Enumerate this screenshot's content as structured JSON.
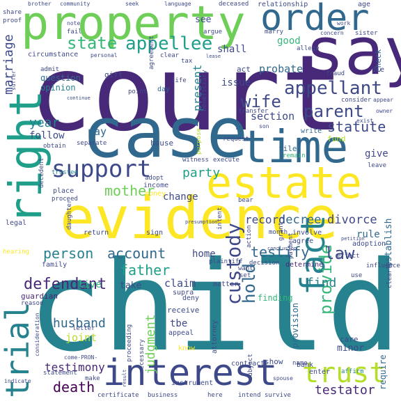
{
  "palette": {
    "yellow": "#fde725",
    "yellow_green": "#b5de2b",
    "light_green": "#6ece58",
    "green": "#35b779",
    "teal_green": "#1f9e89",
    "teal": "#26828e",
    "blue": "#31688e",
    "indigo": "#3e4989",
    "purple": "#482878",
    "dark_purple": "#440154"
  },
  "words": [
    {
      "text": "court",
      "color": "purple",
      "weight": 1.0
    },
    {
      "text": "child",
      "color": "teal",
      "weight": 0.98
    },
    {
      "text": "evidence",
      "color": "yellow",
      "weight": 0.8
    },
    {
      "text": "case",
      "color": "blue",
      "weight": 0.78
    },
    {
      "text": "property",
      "color": "light_green",
      "weight": 0.72
    },
    {
      "text": "say",
      "color": "purple",
      "weight": 0.62
    },
    {
      "text": "estate",
      "color": "yellow",
      "weight": 0.55
    },
    {
      "text": "time",
      "color": "blue",
      "weight": 0.52
    },
    {
      "text": "right",
      "color": "teal_green",
      "weight": 0.5
    },
    {
      "text": "interest",
      "color": "indigo",
      "weight": 0.46
    },
    {
      "text": "order",
      "color": "blue",
      "weight": 0.44
    },
    {
      "text": "trial",
      "color": "teal",
      "weight": 0.42
    },
    {
      "text": "fact",
      "color": "teal",
      "weight": 0.4
    },
    {
      "text": "support",
      "color": "indigo",
      "weight": 0.38
    },
    {
      "text": "trust",
      "color": "yellow_green",
      "weight": 0.34
    },
    {
      "text": "appellant",
      "color": "indigo",
      "weight": 0.3
    },
    {
      "text": "custody",
      "color": "indigo",
      "weight": 0.29
    },
    {
      "text": "provide",
      "color": "green",
      "weight": 0.28
    },
    {
      "text": "appellee",
      "color": "teal_green",
      "weight": 0.27
    },
    {
      "text": "parent",
      "color": "indigo",
      "weight": 0.27
    },
    {
      "text": "state",
      "color": "green",
      "weight": 0.26
    },
    {
      "text": "hold",
      "color": "blue",
      "weight": 0.25
    },
    {
      "text": "wife",
      "color": "indigo",
      "weight": 0.24
    },
    {
      "text": "law",
      "color": "indigo",
      "weight": 0.24
    },
    {
      "text": "mother",
      "color": "light_green",
      "weight": 0.23
    },
    {
      "text": "defendant",
      "color": "purple",
      "weight": 0.23
    },
    {
      "text": "death",
      "color": "dark_purple",
      "weight": 0.22
    },
    {
      "text": "person",
      "color": "teal",
      "weight": 0.22
    },
    {
      "text": "account",
      "color": "blue",
      "weight": 0.22
    },
    {
      "text": "testify",
      "color": "blue",
      "weight": 0.22
    },
    {
      "text": "statute",
      "color": "indigo",
      "weight": 0.22
    },
    {
      "text": "father",
      "color": "teal_green",
      "weight": 0.21
    },
    {
      "text": "year",
      "color": "teal",
      "weight": 0.2
    },
    {
      "text": "party",
      "color": "teal_green",
      "weight": 0.2
    },
    {
      "text": "judgment",
      "color": "light_green",
      "weight": 0.2
    },
    {
      "text": "husband",
      "color": "blue",
      "weight": 0.19
    },
    {
      "text": "testator",
      "color": "purple",
      "weight": 0.19
    },
    {
      "text": "find",
      "color": "teal",
      "weight": 0.18
    },
    {
      "text": "marriage",
      "color": "indigo",
      "weight": 0.18
    },
    {
      "text": "decree",
      "color": "blue",
      "weight": 0.18
    },
    {
      "text": "divorce",
      "color": "indigo",
      "weight": 0.18
    },
    {
      "text": "present",
      "color": "teal",
      "weight": 0.17
    },
    {
      "text": "record",
      "color": "indigo",
      "weight": 0.17
    },
    {
      "text": "testimony",
      "color": "purple",
      "weight": 0.16
    },
    {
      "text": "section",
      "color": "indigo",
      "weight": 0.16
    },
    {
      "text": "joint",
      "color": "yellow_green",
      "weight": 0.16
    },
    {
      "text": "claim",
      "color": "indigo",
      "weight": 0.15
    },
    {
      "text": "probate",
      "color": "blue",
      "weight": 0.15
    },
    {
      "text": "give",
      "color": "indigo",
      "weight": 0.15
    },
    {
      "text": "issue",
      "color": "indigo",
      "weight": 0.15
    },
    {
      "text": "live",
      "color": "green",
      "weight": 0.15
    },
    {
      "text": "follow",
      "color": "indigo",
      "weight": 0.14
    },
    {
      "text": "pay",
      "color": "blue",
      "weight": 0.14
    },
    {
      "text": "change",
      "color": "indigo",
      "weight": 0.14
    },
    {
      "text": "home",
      "color": "indigo",
      "weight": 0.14
    },
    {
      "text": "take",
      "color": "indigo",
      "weight": 0.14
    },
    {
      "text": "rule",
      "color": "blue",
      "weight": 0.14
    },
    {
      "text": "establish",
      "color": "blue",
      "weight": 0.14
    },
    {
      "text": "shall",
      "color": "indigo",
      "weight": 0.13
    },
    {
      "text": "see",
      "color": "indigo",
      "weight": 0.13
    },
    {
      "text": "good",
      "color": "green",
      "weight": 0.13
    },
    {
      "text": "tbe",
      "color": "indigo",
      "weight": 0.13
    },
    {
      "text": "minor",
      "color": "indigo",
      "weight": 0.12
    },
    {
      "text": "finding",
      "color": "green",
      "weight": 0.12
    },
    {
      "text": "provision",
      "color": "blue",
      "weight": 0.12
    },
    {
      "text": "require",
      "color": "blue",
      "weight": 0.12
    },
    {
      "text": "opinion",
      "color": "teal",
      "weight": 0.12
    },
    {
      "text": "question",
      "color": "blue",
      "weight": 0.12
    },
    {
      "text": "house",
      "color": "indigo",
      "weight": 0.11
    },
    {
      "text": "gift",
      "color": "indigo",
      "weight": 0.11
    },
    {
      "text": "act",
      "color": "indigo",
      "weight": 0.11
    },
    {
      "text": "fund",
      "color": "yellow_green",
      "weight": 0.11
    },
    {
      "text": "day",
      "color": "blue",
      "weight": 0.1
    },
    {
      "text": "check",
      "color": "blue",
      "weight": 0.1
    },
    {
      "text": "show",
      "color": "indigo",
      "weight": 0.1
    },
    {
      "text": "care",
      "color": "indigo",
      "weight": 0.1
    },
    {
      "text": "bank",
      "color": "indigo",
      "weight": 0.1
    },
    {
      "text": "file",
      "color": "blue",
      "weight": 0.1
    },
    {
      "text": "write",
      "color": "blue",
      "weight": 0.1
    },
    {
      "text": "receive",
      "color": "indigo",
      "weight": 0.1
    },
    {
      "text": "deny",
      "color": "indigo",
      "weight": 0.09
    },
    {
      "text": "matter",
      "color": "indigo",
      "weight": 0.09
    },
    {
      "text": "appeal",
      "color": "indigo",
      "weight": 0.09
    },
    {
      "text": "enter",
      "color": "indigo",
      "weight": 0.09
    },
    {
      "text": "return",
      "color": "indigo",
      "weight": 0.09
    },
    {
      "text": "sign",
      "color": "indigo",
      "weight": 0.09
    },
    {
      "text": "involve",
      "color": "indigo",
      "weight": 0.08
    },
    {
      "text": "agree",
      "color": "indigo",
      "weight": 0.08
    },
    {
      "text": "place",
      "color": "indigo",
      "weight": 0.08
    },
    {
      "text": "supra",
      "color": "indigo",
      "weight": 0.08
    },
    {
      "text": "contract",
      "color": "indigo",
      "weight": 0.08
    },
    {
      "text": "relationship",
      "color": "indigo",
      "weight": 0.08
    },
    {
      "text": "circumstance",
      "color": "indigo",
      "weight": 0.08
    },
    {
      "text": "income",
      "color": "indigo",
      "weight": 0.08
    },
    {
      "text": "money",
      "color": "yellow",
      "weight": 0.08
    },
    {
      "text": "attorney",
      "color": "indigo",
      "weight": 0.08
    },
    {
      "text": "know",
      "color": "yellow",
      "weight": 0.08
    },
    {
      "text": "family",
      "color": "indigo",
      "weight": 0.08
    },
    {
      "text": "make",
      "color": "indigo",
      "weight": 0.07
    },
    {
      "text": "name",
      "color": "indigo",
      "weight": 0.07
    },
    {
      "text": "affirm",
      "color": "teal",
      "weight": 0.07
    },
    {
      "text": "instrument",
      "color": "indigo",
      "weight": 0.07
    },
    {
      "text": "certificate",
      "color": "indigo",
      "weight": 0.07
    },
    {
      "text": "business",
      "color": "indigo",
      "weight": 0.07
    },
    {
      "text": "intend",
      "color": "indigo",
      "weight": 0.07
    },
    {
      "text": "survive",
      "color": "indigo",
      "weight": 0.07
    },
    {
      "text": "statement",
      "color": "indigo",
      "weight": 0.07
    },
    {
      "text": "legal",
      "color": "indigo",
      "weight": 0.07
    },
    {
      "text": "month",
      "color": "indigo",
      "weight": 0.07
    },
    {
      "text": "decision",
      "color": "indigo",
      "weight": 0.07
    },
    {
      "text": "determine",
      "color": "purple",
      "weight": 0.07
    },
    {
      "text": "adoption",
      "color": "indigo",
      "weight": 0.07
    },
    {
      "text": "effect",
      "color": "indigo",
      "weight": 0.07
    },
    {
      "text": "agreement",
      "color": "indigo",
      "weight": 0.07
    },
    {
      "text": "beneficiary",
      "color": "indigo",
      "weight": 0.07
    },
    {
      "text": "marry",
      "color": "indigo",
      "weight": 0.07
    },
    {
      "text": "allege",
      "color": "indigo",
      "weight": 0.07
    },
    {
      "text": "fraud",
      "color": "indigo",
      "weight": 0.07
    },
    {
      "text": "die",
      "color": "indigo",
      "weight": 0.07
    },
    {
      "text": "consider",
      "color": "indigo",
      "weight": 0.07
    },
    {
      "text": "transfer",
      "color": "indigo",
      "weight": 0.07
    },
    {
      "text": "request",
      "color": "indigo",
      "weight": 0.07
    },
    {
      "text": "remain",
      "color": "green",
      "weight": 0.07
    },
    {
      "text": "leave",
      "color": "indigo",
      "weight": 0.07
    },
    {
      "text": "separate",
      "color": "indigo",
      "weight": 0.06
    },
    {
      "text": "obtain",
      "color": "indigo",
      "weight": 0.06
    },
    {
      "text": "decedent",
      "color": "indigo",
      "weight": 0.06
    },
    {
      "text": "daughter",
      "color": "indigo",
      "weight": 0.06
    },
    {
      "text": "trustee",
      "color": "teal",
      "weight": 0.06
    },
    {
      "text": "proceed",
      "color": "indigo",
      "weight": 0.06
    },
    {
      "text": "proceeding",
      "color": "indigo",
      "weight": 0.06
    },
    {
      "text": "execute",
      "color": "indigo",
      "weight": 0.06
    },
    {
      "text": "witness",
      "color": "indigo",
      "weight": 0.06
    },
    {
      "text": "purpose",
      "color": "yellow_green",
      "weight": 0.06
    },
    {
      "text": "plaintiff",
      "color": "indigo",
      "weight": 0.06
    },
    {
      "text": "want",
      "color": "indigo",
      "weight": 0.06
    },
    {
      "text": "set",
      "color": "indigo",
      "weight": 0.06
    },
    {
      "text": "use",
      "color": "indigo",
      "weight": 0.06
    },
    {
      "text": "grant",
      "color": "indigo",
      "weight": 0.06
    },
    {
      "text": "payment",
      "color": "indigo",
      "weight": 0.06
    },
    {
      "text": "action",
      "color": "indigo",
      "weight": 0.06
    },
    {
      "text": "bear",
      "color": "indigo",
      "weight": 0.06
    },
    {
      "text": "intent",
      "color": "indigo",
      "weight": 0.06
    },
    {
      "text": "adopt",
      "color": "indigo",
      "weight": 0.06
    },
    {
      "text": "letter",
      "color": "indigo",
      "weight": 0.06
    },
    {
      "text": "necessary",
      "color": "indigo",
      "weight": 0.06
    },
    {
      "text": "subject",
      "color": "indigo",
      "weight": 0.06
    },
    {
      "text": "guardian",
      "color": "purple",
      "weight": 0.06
    },
    {
      "text": "reason",
      "color": "indigo",
      "weight": 0.06
    },
    {
      "text": "here",
      "color": "indigo",
      "weight": 0.06
    },
    {
      "text": "clear",
      "color": "indigo",
      "weight": 0.06
    },
    {
      "text": "tax",
      "color": "indigo",
      "weight": 0.06
    },
    {
      "text": "point",
      "color": "indigo",
      "weight": 0.06
    },
    {
      "text": "life",
      "color": "indigo",
      "weight": 0.06
    },
    {
      "text": "argue",
      "color": "indigo",
      "weight": 0.05
    },
    {
      "text": "fail",
      "color": "indigo",
      "weight": 0.05
    },
    {
      "text": "proof",
      "color": "indigo",
      "weight": 0.05
    },
    {
      "text": "deceased",
      "color": "indigo",
      "weight": 0.05
    },
    {
      "text": "sister",
      "color": "indigo",
      "weight": 0.05
    },
    {
      "text": "age",
      "color": "indigo",
      "weight": 0.05
    },
    {
      "text": "admit",
      "color": "indigo",
      "weight": 0.05
    },
    {
      "text": "personal",
      "color": "indigo",
      "weight": 0.05
    },
    {
      "text": "exist",
      "color": "indigo",
      "weight": 0.05
    },
    {
      "text": "son",
      "color": "indigo",
      "weight": 0.05
    },
    {
      "text": "owner",
      "color": "indigo",
      "weight": 0.05
    },
    {
      "text": "appear",
      "color": "indigo",
      "weight": 0.05
    },
    {
      "text": "influence",
      "color": "indigo",
      "weight": 0.05
    },
    {
      "text": "clearly",
      "color": "indigo",
      "weight": 0.05
    },
    {
      "text": "spouse",
      "color": "indigo",
      "weight": 0.05
    },
    {
      "text": "hearing",
      "color": "yellow",
      "weight": 0.05
    },
    {
      "text": "suffer",
      "color": "indigo",
      "weight": 0.05
    },
    {
      "text": "consideration",
      "color": "indigo",
      "weight": 0.05
    },
    {
      "text": "indicate",
      "color": "indigo",
      "weight": 0.05
    },
    {
      "text": "share",
      "color": "indigo",
      "weight": 0.05
    },
    {
      "text": "come-PRON-",
      "color": "indigo",
      "weight": 0.05
    },
    {
      "text": "presumption",
      "color": "indigo",
      "weight": 0.04
    },
    {
      "text": "concern",
      "color": "indigo",
      "weight": 0.04
    },
    {
      "text": "continue",
      "color": "indigo",
      "weight": 0.04
    },
    {
      "text": "note",
      "color": "indigo",
      "weight": 0.04
    },
    {
      "text": "brother",
      "color": "indigo",
      "weight": 0.04
    },
    {
      "text": "community",
      "color": "indigo",
      "weight": 0.04
    },
    {
      "text": "seek",
      "color": "indigo",
      "weight": 0.04
    },
    {
      "text": "language",
      "color": "indigo",
      "weight": 0.04
    },
    {
      "text": "work",
      "color": "indigo",
      "weight": 0.04
    },
    {
      "text": "lease",
      "color": "indigo",
      "weight": 0.04
    },
    {
      "text": "conclusion",
      "color": "indigo",
      "weight": 0.04
    },
    {
      "text": "petition",
      "color": "indigo",
      "weight": 0.04
    },
    {
      "text": "result",
      "color": "indigo",
      "weight": 0.04
    }
  ]
}
